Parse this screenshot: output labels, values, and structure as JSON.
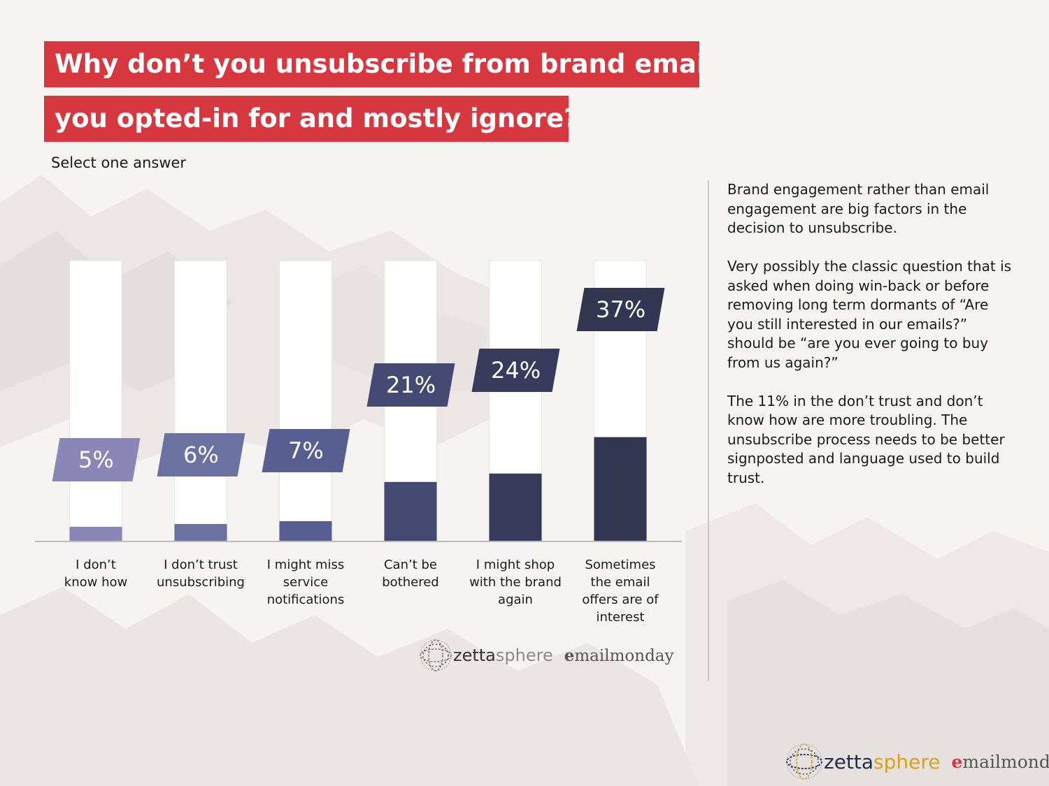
{
  "title": {
    "line1": "Why don’t you unsubscribe from brand emails",
    "line2": "you opted-in for and mostly ignore?"
  },
  "subtitle": "Select one answer",
  "chart_data": {
    "type": "bar",
    "categories": [
      "I don’t know how",
      "I don’t trust unsubscribing",
      "I might miss service notifications",
      "Can’t be bothered",
      "I might shop with the brand again",
      "Sometimes the email offers are of interest"
    ],
    "category_lines": [
      [
        "I don’t",
        "know how"
      ],
      [
        "I don’t trust",
        "unsubscribing"
      ],
      [
        "I might miss",
        "service",
        "notifications"
      ],
      [
        "Can’t be",
        "bothered"
      ],
      [
        "I might shop",
        "with the brand",
        "again"
      ],
      [
        "Sometimes",
        "the email",
        "offers are of",
        "interest"
      ]
    ],
    "values": [
      5,
      6,
      7,
      21,
      24,
      37
    ],
    "value_labels": [
      "5%",
      "6%",
      "7%",
      "21%",
      "24%",
      "37%"
    ],
    "ylim": [
      0,
      100
    ],
    "unit": "%",
    "colors": [
      "#8a86b6",
      "#6b72a2",
      "#575f92",
      "#454a72",
      "#383a5c",
      "#333650"
    ],
    "track_color": "#ffffff",
    "grid": false,
    "xlabel": "",
    "ylabel": ""
  },
  "commentary": [
    "Brand engagement rather than email engagement are big factors in the decision to unsubscribe.",
    "Very possibly the classic question that is asked when doing win-back or before removing long term dormants of “Are you still interested in our emails?” should be “are you ever going to buy from us again?”",
    "The 11% in the don’t trust and don’t know how are more troubling. The unsubscribe process needs to be better signposted and language used to build trust."
  ],
  "branding": {
    "zetta": "zetta",
    "sphere": "sphere",
    "email_e": "e",
    "email_rest": "mailmonday"
  }
}
